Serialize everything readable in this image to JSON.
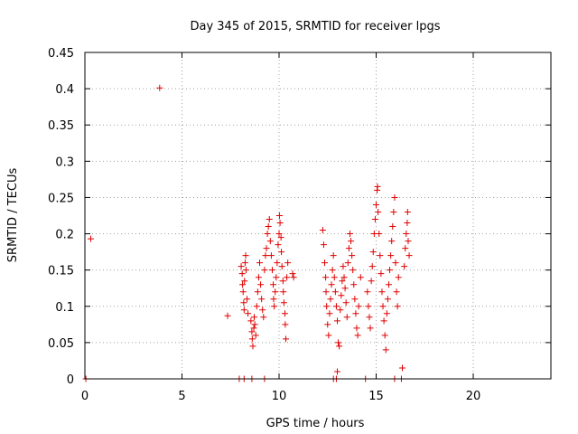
{
  "chart_data": {
    "type": "scatter",
    "title": "Day 345 of 2015, SRMTID for receiver lpgs",
    "xlabel": "GPS time / hours",
    "ylabel": "SRMTID / TECUs",
    "xlim": [
      0,
      24
    ],
    "ylim": [
      0,
      0.45
    ],
    "x_ticks": [
      0,
      5,
      10,
      15,
      20
    ],
    "y_ticks": [
      0,
      0.05,
      0.1,
      0.15,
      0.2,
      0.25,
      0.3,
      0.35,
      0.4,
      0.45
    ],
    "x_tick_labels": [
      "0",
      "5",
      "10",
      "15",
      "20"
    ],
    "y_tick_labels": [
      "0",
      "0.05",
      "0.1",
      "0.15",
      "0.2",
      "0.25",
      "0.3",
      "0.35",
      "0.4",
      "0.45"
    ],
    "grid": true,
    "marker": "+",
    "color": "#e00000",
    "series": [
      {
        "name": "SRMTID",
        "points": [
          [
            0.05,
            0.0
          ],
          [
            0.3,
            0.193
          ],
          [
            3.85,
            0.401
          ],
          [
            7.35,
            0.087
          ],
          [
            7.95,
            0.0
          ],
          [
            8.2,
            0.0
          ],
          [
            8.6,
            0.0
          ],
          [
            9.25,
            0.0
          ],
          [
            8.05,
            0.155
          ],
          [
            8.1,
            0.145
          ],
          [
            8.12,
            0.13
          ],
          [
            8.15,
            0.12
          ],
          [
            8.18,
            0.105
          ],
          [
            8.2,
            0.095
          ],
          [
            8.22,
            0.135
          ],
          [
            8.25,
            0.16
          ],
          [
            8.28,
            0.17
          ],
          [
            8.3,
            0.15
          ],
          [
            8.35,
            0.11
          ],
          [
            8.4,
            0.09
          ],
          [
            8.55,
            0.08
          ],
          [
            8.6,
            0.065
          ],
          [
            8.62,
            0.055
          ],
          [
            8.65,
            0.045
          ],
          [
            8.7,
            0.07
          ],
          [
            8.72,
            0.085
          ],
          [
            8.75,
            0.075
          ],
          [
            8.8,
            0.06
          ],
          [
            8.85,
            0.1
          ],
          [
            8.9,
            0.12
          ],
          [
            8.95,
            0.14
          ],
          [
            9.0,
            0.16
          ],
          [
            9.05,
            0.13
          ],
          [
            9.1,
            0.11
          ],
          [
            9.15,
            0.095
          ],
          [
            9.2,
            0.085
          ],
          [
            9.25,
            0.15
          ],
          [
            9.3,
            0.17
          ],
          [
            9.35,
            0.18
          ],
          [
            9.4,
            0.2
          ],
          [
            9.45,
            0.21
          ],
          [
            9.5,
            0.22
          ],
          [
            9.55,
            0.19
          ],
          [
            9.6,
            0.17
          ],
          [
            9.65,
            0.15
          ],
          [
            9.7,
            0.13
          ],
          [
            9.72,
            0.11
          ],
          [
            9.75,
            0.1
          ],
          [
            9.8,
            0.12
          ],
          [
            9.85,
            0.14
          ],
          [
            9.9,
            0.16
          ],
          [
            9.95,
            0.185
          ],
          [
            10.0,
            0.2
          ],
          [
            10.02,
            0.225
          ],
          [
            10.05,
            0.215
          ],
          [
            10.1,
            0.195
          ],
          [
            10.12,
            0.175
          ],
          [
            10.15,
            0.155
          ],
          [
            10.2,
            0.135
          ],
          [
            10.22,
            0.12
          ],
          [
            10.25,
            0.105
          ],
          [
            10.3,
            0.09
          ],
          [
            10.32,
            0.075
          ],
          [
            10.35,
            0.055
          ],
          [
            10.4,
            0.14
          ],
          [
            10.45,
            0.16
          ],
          [
            10.7,
            0.145
          ],
          [
            10.75,
            0.14
          ],
          [
            12.25,
            0.205
          ],
          [
            12.3,
            0.185
          ],
          [
            12.35,
            0.16
          ],
          [
            12.4,
            0.14
          ],
          [
            12.42,
            0.12
          ],
          [
            12.45,
            0.1
          ],
          [
            12.5,
            0.075
          ],
          [
            12.55,
            0.06
          ],
          [
            12.6,
            0.09
          ],
          [
            12.65,
            0.11
          ],
          [
            12.7,
            0.13
          ],
          [
            12.75,
            0.15
          ],
          [
            12.8,
            0.17
          ],
          [
            12.85,
            0.14
          ],
          [
            12.9,
            0.12
          ],
          [
            12.95,
            0.1
          ],
          [
            13.0,
            0.08
          ],
          [
            13.05,
            0.05
          ],
          [
            13.1,
            0.045
          ],
          [
            13.15,
            0.095
          ],
          [
            13.2,
            0.115
          ],
          [
            13.25,
            0.135
          ],
          [
            13.3,
            0.155
          ],
          [
            13.35,
            0.14
          ],
          [
            13.4,
            0.125
          ],
          [
            13.45,
            0.105
          ],
          [
            13.5,
            0.085
          ],
          [
            13.55,
            0.16
          ],
          [
            13.6,
            0.18
          ],
          [
            13.65,
            0.2
          ],
          [
            13.7,
            0.19
          ],
          [
            13.75,
            0.17
          ],
          [
            13.8,
            0.15
          ],
          [
            13.85,
            0.13
          ],
          [
            13.9,
            0.11
          ],
          [
            13.95,
            0.09
          ],
          [
            14.0,
            0.07
          ],
          [
            14.05,
            0.06
          ],
          [
            14.1,
            0.1
          ],
          [
            14.2,
            0.14
          ],
          [
            12.8,
            0.0
          ],
          [
            12.95,
            0.0
          ],
          [
            13.0,
            0.01
          ],
          [
            14.45,
            0.0
          ],
          [
            14.55,
            0.12
          ],
          [
            14.6,
            0.1
          ],
          [
            14.65,
            0.085
          ],
          [
            14.7,
            0.07
          ],
          [
            14.75,
            0.135
          ],
          [
            14.8,
            0.155
          ],
          [
            14.85,
            0.175
          ],
          [
            14.9,
            0.2
          ],
          [
            14.95,
            0.22
          ],
          [
            15.0,
            0.24
          ],
          [
            15.05,
            0.26
          ],
          [
            15.07,
            0.265
          ],
          [
            15.1,
            0.23
          ],
          [
            15.15,
            0.2
          ],
          [
            15.2,
            0.17
          ],
          [
            15.25,
            0.145
          ],
          [
            15.3,
            0.12
          ],
          [
            15.35,
            0.1
          ],
          [
            15.4,
            0.08
          ],
          [
            15.45,
            0.06
          ],
          [
            15.5,
            0.04
          ],
          [
            15.55,
            0.09
          ],
          [
            15.6,
            0.11
          ],
          [
            15.65,
            0.13
          ],
          [
            15.7,
            0.15
          ],
          [
            15.75,
            0.17
          ],
          [
            15.8,
            0.19
          ],
          [
            15.85,
            0.21
          ],
          [
            15.9,
            0.23
          ],
          [
            15.95,
            0.25
          ],
          [
            16.0,
            0.16
          ],
          [
            16.05,
            0.12
          ],
          [
            16.1,
            0.1
          ],
          [
            16.15,
            0.14
          ],
          [
            15.95,
            0.0
          ],
          [
            16.3,
            0.0
          ],
          [
            16.35,
            0.015
          ],
          [
            16.45,
            0.155
          ],
          [
            16.5,
            0.18
          ],
          [
            16.55,
            0.2
          ],
          [
            16.6,
            0.215
          ],
          [
            16.62,
            0.23
          ],
          [
            16.65,
            0.19
          ],
          [
            16.7,
            0.17
          ]
        ]
      }
    ]
  }
}
